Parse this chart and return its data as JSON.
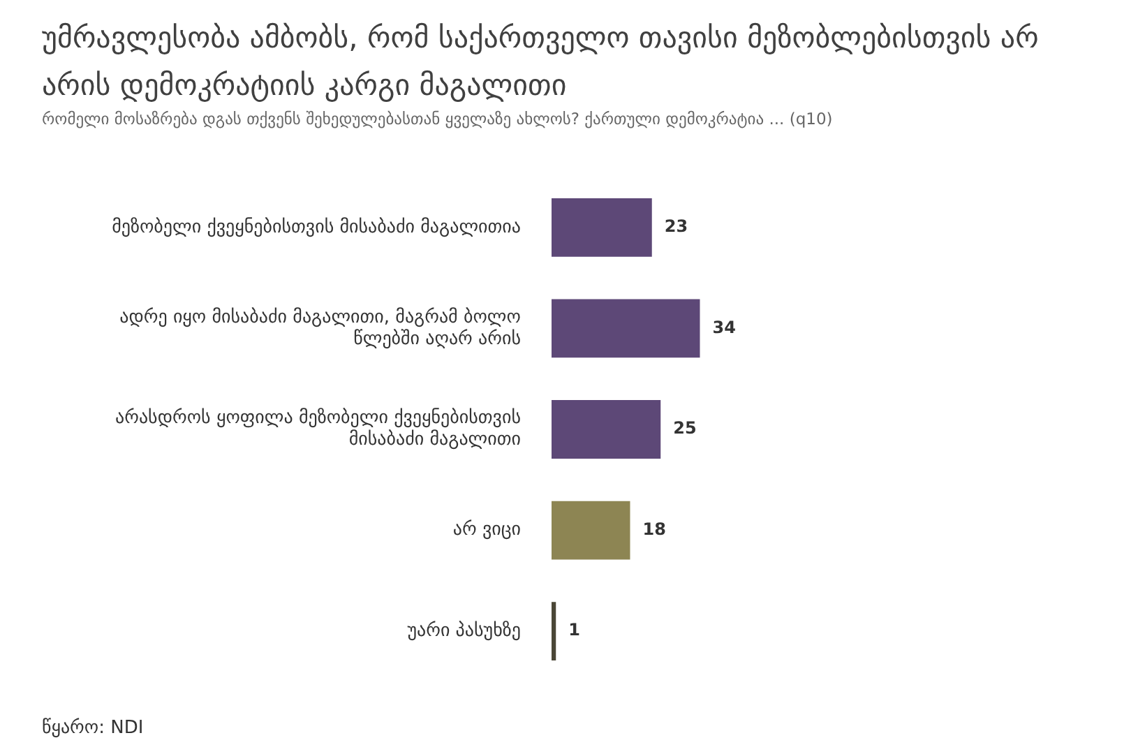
{
  "chart_data": {
    "type": "bar",
    "orientation": "horizontal",
    "title": "უმრავლესობა ამბობს, რომ საქართველო თავისი მეზობლებისთვის არ არის დემოკრატიის კარგი მაგალითი",
    "subtitle": "რომელი მოსაზრება  დგას თქვენს შეხედულებასთან ყველაზე ახლოს? ქართული დემოკრატია ... (q10)",
    "categories": [
      "მეზობელი ქვეყნებისთვის მისაბაძი მაგალითია",
      "ადრე იყო მისაბაძი მაგალითი, მაგრამ ბოლო წლებში აღარ არის",
      "არასდროს ყოფილა მეზობელი ქვეყნებისთვის მისაბაძი მაგალითი",
      "არ ვიცი",
      "უარი პასუხზე"
    ],
    "values": [
      23,
      34,
      25,
      18,
      1
    ],
    "colors": [
      "#5d4877",
      "#5d4877",
      "#5d4877",
      "#8d8553",
      "#4a4636"
    ],
    "data_labels": true,
    "annotations": [
      "წყარო: NDI"
    ]
  }
}
